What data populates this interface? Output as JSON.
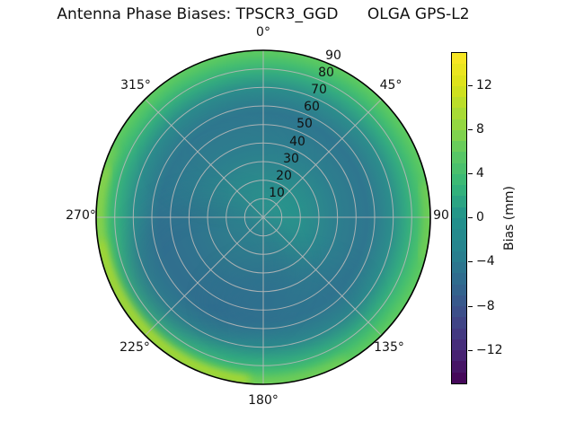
{
  "title": "Antenna Phase Biases: TPSCR3_GGD      OLGA GPS-L2",
  "chart_data": {
    "type": "heatmap",
    "subtype": "polar_phase_pattern",
    "title": "Antenna Phase Biases: TPSCR3_GGD      OLGA GPS-L2",
    "antenna": "TPSCR3_GGD",
    "model": "OLGA GPS-L2",
    "angular_tick_labels": [
      "0°",
      "45°",
      "90",
      "135°",
      "180°",
      "225°",
      "270°",
      "315°"
    ],
    "radial_tick_labels": [
      "10",
      "20",
      "30",
      "40",
      "50",
      "60",
      "70",
      "80",
      "90"
    ],
    "radial_range": [
      0,
      90
    ],
    "grid": true,
    "colorbar": {
      "label": "Bias (mm)",
      "ticks": [
        "12",
        "8",
        "4",
        "0",
        "−4",
        "−8",
        "−12"
      ],
      "tick_values": [
        12,
        8,
        4,
        0,
        -4,
        -8,
        -12
      ],
      "range": [
        -15,
        15
      ],
      "colormap": "viridis",
      "n_bands": 30,
      "viridis_stops": [
        {
          "pos": 0.0,
          "color": "#440154"
        },
        {
          "pos": 0.1,
          "color": "#482878"
        },
        {
          "pos": 0.2,
          "color": "#3e4a89"
        },
        {
          "pos": 0.3,
          "color": "#31688e"
        },
        {
          "pos": 0.4,
          "color": "#26828e"
        },
        {
          "pos": 0.5,
          "color": "#21918c"
        },
        {
          "pos": 0.6,
          "color": "#35b779"
        },
        {
          "pos": 0.7,
          "color": "#5ec962"
        },
        {
          "pos": 0.8,
          "color": "#9fda3a"
        },
        {
          "pos": 0.9,
          "color": "#d8e219"
        },
        {
          "pos": 1.0,
          "color": "#fde725"
        }
      ]
    },
    "field": {
      "description": "Continuous bias field over azimuth (deg, clockwise from top) and zenith angle (0 center to 90 rim); values in mm estimated from colors",
      "azimuth_deg": [
        0,
        45,
        90,
        135,
        180,
        225,
        270,
        315
      ],
      "zenith_deg": [
        0,
        30,
        60,
        80,
        90
      ],
      "bias_mm": [
        [
          1,
          0,
          -1,
          2,
          5
        ],
        [
          1,
          0,
          -1,
          2,
          6
        ],
        [
          1,
          0,
          -2,
          3,
          8
        ],
        [
          1,
          -1,
          -2,
          4,
          10
        ],
        [
          1,
          -1,
          -3,
          5,
          11
        ],
        [
          1,
          -2,
          -5,
          6,
          13
        ],
        [
          1,
          -1,
          -4,
          6,
          12
        ],
        [
          1,
          0,
          -2,
          3,
          7
        ]
      ],
      "key_colors": {
        "center_teal": "#2b9b8d",
        "mid_annulus_blue": "#2f768f",
        "dark_blob_lower_left": "#31688e",
        "rim_green": "#44bd70",
        "rim_yellow_fringe": "#d8e219"
      }
    }
  }
}
